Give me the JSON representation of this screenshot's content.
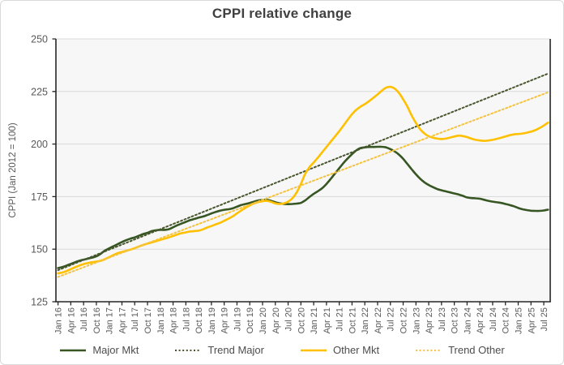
{
  "title": "CPPI relative change",
  "y_axis": {
    "label": "CPPI (Jan 2012 = 100)",
    "ticks": [
      250,
      225,
      200,
      175,
      150,
      125
    ]
  },
  "x_axis": {
    "labels": [
      "Jan 16",
      "Apr 16",
      "Jul 16",
      "Oct 16",
      "Jan 17",
      "Apr 17",
      "Jul 17",
      "Oct 17",
      "Jan 18",
      "Apr 18",
      "Jul 18",
      "Oct 18",
      "Jan 19",
      "Apr 19",
      "Jul 19",
      "Oct 19",
      "Jan 20",
      "Apr 20",
      "Jul 20",
      "Oct 20",
      "Jan 21",
      "Apr 21",
      "Jul 21",
      "Oct 21",
      "Jan 22",
      "Apr 22",
      "Jul 22",
      "Oct 22",
      "Jan 23",
      "Apr 23",
      "Jul 23",
      "Oct 23",
      "Jan 24",
      "Apr 24",
      "Jul 24",
      "Oct 24",
      "Jan 25",
      "Apr 25",
      "Jul 25"
    ],
    "tick_interval_months": 3
  },
  "colors": {
    "title_text": "#404040",
    "axis_text": "#595959",
    "gridline": "#d9d9d9",
    "axis_line": "#262626",
    "plot_background": "#f7f7f7"
  },
  "chart_data": {
    "type": "line",
    "title": "CPPI relative change",
    "ylabel": "CPPI (Jan 2012 = 100)",
    "ylim": [
      125,
      250
    ],
    "x_start": "Jan 2016",
    "x_end": "Aug 2025",
    "x_unit": "month",
    "grid": "horizontal",
    "legend_position": "bottom",
    "series": [
      {
        "name": "Major Mkt",
        "color": "#375623",
        "style": "solid",
        "values": [
          141.0,
          141.5,
          142.2,
          143.0,
          143.8,
          144.5,
          145.0,
          145.5,
          146.0,
          146.6,
          147.8,
          149.3,
          150.4,
          151.4,
          152.4,
          153.4,
          154.3,
          155.0,
          155.6,
          156.4,
          157.2,
          157.8,
          158.6,
          159.0,
          159.2,
          159.2,
          159.5,
          160.4,
          161.4,
          162.2,
          163.0,
          163.8,
          164.4,
          165.0,
          165.5,
          166.2,
          167.0,
          167.7,
          168.3,
          168.7,
          169.0,
          169.4,
          170.2,
          171.0,
          171.5,
          172.0,
          172.6,
          173.2,
          173.4,
          173.5,
          173.0,
          172.3,
          171.8,
          171.5,
          171.4,
          171.5,
          171.7,
          172.0,
          173.2,
          174.8,
          176.3,
          177.6,
          179.0,
          181.0,
          183.4,
          186.0,
          188.5,
          191.0,
          193.2,
          195.2,
          197.0,
          198.1,
          198.4,
          198.6,
          198.6,
          198.7,
          198.7,
          198.4,
          197.6,
          196.5,
          195.0,
          193.0,
          190.5,
          188.0,
          185.6,
          183.5,
          181.8,
          180.5,
          179.5,
          178.6,
          178.0,
          177.5,
          177.0,
          176.5,
          176.0,
          175.4,
          174.6,
          174.3,
          174.2,
          174.0,
          173.5,
          173.0,
          172.6,
          172.3,
          172.0,
          171.5,
          171.0,
          170.4,
          169.6,
          169.0,
          168.6,
          168.3,
          168.2,
          168.2,
          168.4,
          168.8
        ]
      },
      {
        "name": "Trend Major",
        "color": "#49572e",
        "style": "dotted",
        "trend": true,
        "start": 140.0,
        "end": 233.5
      },
      {
        "name": "Other Mkt",
        "color": "#FFC000",
        "style": "solid",
        "values": [
          138.5,
          138.9,
          139.6,
          140.5,
          141.4,
          142.2,
          142.9,
          143.4,
          143.8,
          144.1,
          144.5,
          145.2,
          146.2,
          147.2,
          148.1,
          148.7,
          149.2,
          149.8,
          150.5,
          151.3,
          152.0,
          152.7,
          153.2,
          153.8,
          154.4,
          155.0,
          155.6,
          156.3,
          157.0,
          157.6,
          158.0,
          158.4,
          158.6,
          158.8,
          159.4,
          160.3,
          161.0,
          161.8,
          162.5,
          163.5,
          164.5,
          165.6,
          167.0,
          168.4,
          169.7,
          170.8,
          171.8,
          172.4,
          172.8,
          173.0,
          172.5,
          171.8,
          171.5,
          171.8,
          172.6,
          174.2,
          177.0,
          181.0,
          185.8,
          189.0,
          191.2,
          193.6,
          196.1,
          198.6,
          201.1,
          203.6,
          206.1,
          208.8,
          211.6,
          214.2,
          216.3,
          217.8,
          219.0,
          220.4,
          222.0,
          223.6,
          225.4,
          226.8,
          227.2,
          226.4,
          224.3,
          221.3,
          217.8,
          213.6,
          210.0,
          207.0,
          205.0,
          203.7,
          203.0,
          202.6,
          202.4,
          202.6,
          203.1,
          203.6,
          204.0,
          203.8,
          203.3,
          202.6,
          202.0,
          201.7,
          201.5,
          201.7,
          202.0,
          202.5,
          203.0,
          203.6,
          204.2,
          204.6,
          204.8,
          205.0,
          205.4,
          205.9,
          206.6,
          207.6,
          208.8,
          210.2
        ]
      },
      {
        "name": "Trend Other",
        "color": "#f4c342",
        "style": "dotted",
        "trend": true,
        "start": 136.8,
        "end": 224.6
      }
    ]
  }
}
